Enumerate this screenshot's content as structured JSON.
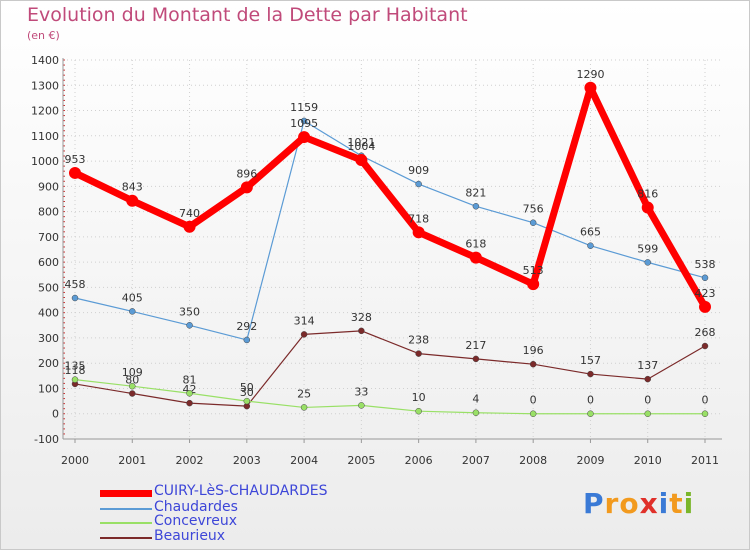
{
  "title": "Evolution du Montant de la Dette par Habitant",
  "subtitle": "(en €)",
  "logo_text": "Proxiti",
  "colors": {
    "title": "#c04a7a",
    "legend_text": "#3d46d8",
    "axis": "#999999",
    "grid": "#d0d0d0",
    "tick_text": "#333333",
    "label_text": "#333333"
  },
  "chart_data": {
    "type": "line",
    "title": "Evolution du Montant de la Dette par Habitant",
    "subtitle": "(en €)",
    "x": [
      "2000",
      "2001",
      "2002",
      "2003",
      "2004",
      "2005",
      "2006",
      "2007",
      "2008",
      "2009",
      "2010",
      "2011"
    ],
    "ylim": [
      -100,
      1400
    ],
    "yticks": [
      -100,
      0,
      100,
      200,
      300,
      400,
      500,
      600,
      700,
      800,
      900,
      1000,
      1100,
      1200,
      1300,
      1400
    ],
    "grid": true,
    "legend_position": "bottom-left",
    "series": [
      {
        "name": "CUIRY-LèS-CHAUDARDES",
        "color": "#ff0000",
        "values": [
          953,
          843,
          740,
          896,
          1095,
          1004,
          718,
          618,
          513,
          1290,
          816,
          423
        ],
        "labels": [
          "953",
          "843",
          "740",
          "896",
          "1095",
          "1004",
          "718",
          "618",
          "513",
          "1290",
          "816",
          "423"
        ]
      },
      {
        "name": "Chaudardes",
        "color": "#5b9bd5",
        "values": [
          458,
          405,
          350,
          292,
          1159,
          1021,
          909,
          821,
          756,
          665,
          599,
          538
        ],
        "labels": [
          "458",
          "405",
          "350",
          "292",
          "1159",
          "1021",
          "909",
          "821",
          "756",
          "665",
          "599",
          "538"
        ]
      },
      {
        "name": "Concevreux",
        "color": "#99e066",
        "values": [
          135,
          109,
          81,
          50,
          25,
          33,
          10,
          4,
          0,
          0,
          0,
          0
        ],
        "labels": [
          "135",
          "109",
          "81",
          "50",
          "25",
          "33",
          "10",
          "4",
          "0",
          "0",
          "0",
          "0"
        ]
      },
      {
        "name": "Beaurieux",
        "color": "#7b2a2a",
        "values": [
          118,
          80,
          42,
          30,
          314,
          328,
          238,
          217,
          196,
          157,
          137,
          268
        ],
        "labels": [
          "118",
          "80",
          "42",
          "30",
          "314",
          "328",
          "238",
          "217",
          "196",
          "157",
          "137",
          "268"
        ]
      }
    ]
  }
}
